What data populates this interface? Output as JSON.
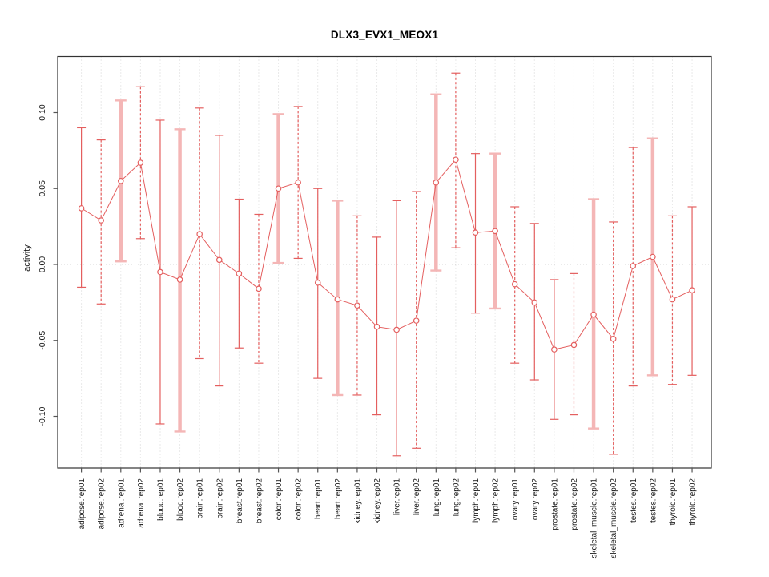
{
  "title": "DLX3_EVX1_MEOX1",
  "chart_data": {
    "type": "line",
    "subtype": "points-with-error-bars",
    "title": "DLX3_EVX1_MEOX1",
    "xlabel": "",
    "ylabel": "activity",
    "ylim": [
      -0.135,
      0.137
    ],
    "grid": "vertical dotted gridline per category; dotted horizontal line at y=0",
    "legend": "none",
    "y_tick_values": [
      -0.1,
      -0.05,
      0.0,
      0.05,
      0.1
    ],
    "y_tick_labels": [
      "-0.10",
      "-0.05",
      "0.00",
      "0.05",
      "0.10"
    ],
    "categories": [
      "adipose.rep01",
      "adipose.rep02",
      "adrenal.rep01",
      "adrenal.rep02",
      "blood.rep01",
      "blood.rep02",
      "brain.rep01",
      "brain.rep02",
      "breast.rep01",
      "breast.rep02",
      "colon.rep01",
      "colon.rep02",
      "heart.rep01",
      "heart.rep02",
      "kidney.rep01",
      "kidney.rep02",
      "liver.rep01",
      "liver.rep02",
      "lung.rep01",
      "lung.rep02",
      "lymph.rep01",
      "lymph.rep02",
      "ovary.rep01",
      "ovary.rep02",
      "prostate.rep01",
      "prostate.rep02",
      "skeletal_muscle.rep01",
      "skeletal_muscle.rep02",
      "testes.rep01",
      "testes.rep02",
      "thyroid.rep01",
      "thyroid.rep02"
    ],
    "series": [
      {
        "name": "activity",
        "values": [
          0.037,
          0.029,
          0.055,
          0.067,
          -0.005,
          -0.01,
          0.02,
          0.003,
          -0.006,
          -0.016,
          0.05,
          0.054,
          -0.012,
          -0.023,
          -0.027,
          -0.041,
          -0.043,
          -0.037,
          0.054,
          0.069,
          0.021,
          0.022,
          -0.013,
          -0.025,
          -0.056,
          -0.053,
          -0.033,
          -0.049,
          -0.001,
          0.005,
          -0.023,
          -0.017
        ],
        "error_upper": [
          0.09,
          0.082,
          0.108,
          0.117,
          0.095,
          0.089,
          0.103,
          0.085,
          0.043,
          0.033,
          0.099,
          0.104,
          0.05,
          0.042,
          0.032,
          0.018,
          0.042,
          0.048,
          0.112,
          0.126,
          0.073,
          0.073,
          0.038,
          0.027,
          -0.01,
          -0.006,
          0.043,
          0.028,
          0.077,
          0.083,
          0.032,
          0.038
        ],
        "error_lower": [
          -0.015,
          -0.026,
          0.002,
          0.017,
          -0.105,
          -0.11,
          -0.062,
          -0.08,
          -0.055,
          -0.065,
          0.001,
          0.004,
          -0.075,
          -0.086,
          -0.086,
          -0.099,
          -0.126,
          -0.121,
          -0.004,
          0.011,
          -0.032,
          -0.029,
          -0.065,
          -0.076,
          -0.102,
          -0.099,
          -0.108,
          -0.125,
          -0.08,
          -0.073,
          -0.079,
          -0.073
        ],
        "error_bar_styles": [
          "solid",
          "dashed",
          "thick",
          "dashed",
          "solid",
          "thick",
          "dashed",
          "solid",
          "solid",
          "dashed",
          "thick",
          "dashed",
          "solid",
          "thick",
          "dashed",
          "solid",
          "solid",
          "dashed",
          "thick",
          "dashed",
          "solid",
          "thick",
          "dashed",
          "solid",
          "solid",
          "dashed",
          "thick",
          "dashed",
          "dashed",
          "thick",
          "dashed",
          "solid"
        ]
      }
    ],
    "colors": {
      "series": "#e45f5f",
      "thick_error_bar": "#f4b6b6",
      "grid": "#d4d4d4",
      "frame": "#333333",
      "tick": "#555555",
      "text": "#1a1a1a"
    }
  }
}
